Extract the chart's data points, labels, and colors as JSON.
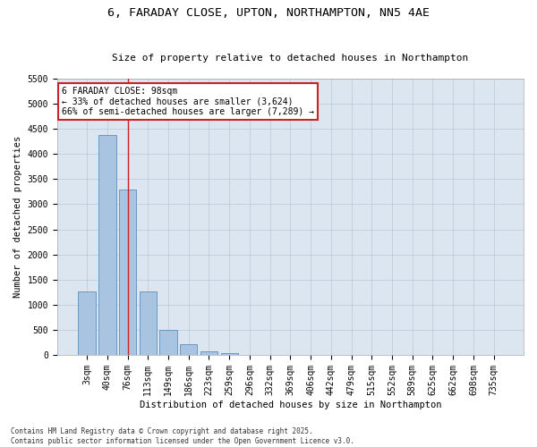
{
  "title1": "6, FARADAY CLOSE, UPTON, NORTHAMPTON, NN5 4AE",
  "title2": "Size of property relative to detached houses in Northampton",
  "xlabel": "Distribution of detached houses by size in Northampton",
  "ylabel": "Number of detached properties",
  "categories": [
    "3sqm",
    "40sqm",
    "76sqm",
    "113sqm",
    "149sqm",
    "186sqm",
    "223sqm",
    "259sqm",
    "296sqm",
    "332sqm",
    "369sqm",
    "406sqm",
    "442sqm",
    "479sqm",
    "515sqm",
    "552sqm",
    "589sqm",
    "625sqm",
    "662sqm",
    "698sqm",
    "735sqm"
  ],
  "values": [
    1260,
    4380,
    3290,
    1270,
    500,
    210,
    75,
    35,
    0,
    0,
    0,
    0,
    0,
    0,
    0,
    0,
    0,
    0,
    0,
    0,
    0
  ],
  "bar_color": "#a8c4e0",
  "bar_edge_color": "#5a90c0",
  "vline_x_index": 2,
  "vline_color": "#cc2222",
  "annotation_text": "6 FARADAY CLOSE: 98sqm\n← 33% of detached houses are smaller (3,624)\n66% of semi-detached houses are larger (7,289) →",
  "annotation_box_edgecolor": "#cc2222",
  "annotation_box_facecolor": "#ffffff",
  "ylim_max": 5500,
  "yticks": [
    0,
    500,
    1000,
    1500,
    2000,
    2500,
    3000,
    3500,
    4000,
    4500,
    5000,
    5500
  ],
  "background_color": "#dce6f0",
  "footer1": "Contains HM Land Registry data © Crown copyright and database right 2025.",
  "footer2": "Contains public sector information licensed under the Open Government Licence v3.0.",
  "fig_width": 6.0,
  "fig_height": 5.0,
  "title1_fontsize": 9.5,
  "title2_fontsize": 8.0,
  "xlabel_fontsize": 7.5,
  "ylabel_fontsize": 7.5,
  "tick_fontsize": 7.0,
  "annot_fontsize": 7.0,
  "footer_fontsize": 5.5
}
